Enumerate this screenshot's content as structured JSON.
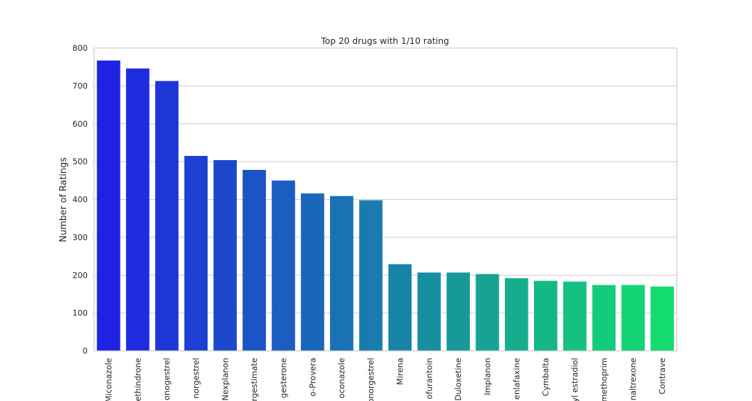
{
  "chart_data": {
    "type": "bar",
    "title": "Top 20 drugs with 1/10 rating",
    "xlabel": "",
    "ylabel": "Number of Ratings",
    "ylim": [
      0,
      800
    ],
    "yticks": [
      0,
      100,
      200,
      300,
      400,
      500,
      600,
      700,
      800
    ],
    "grid": true,
    "legend": false,
    "categories": [
      "Miconazole",
      "ethindrone",
      "onogestrel",
      "norgestrel",
      "Nexplanon",
      "rgestimate",
      "gesterone",
      "o-Provera",
      "oconazole",
      "onorgestrel",
      "Mirena",
      "ofurantoin",
      "Duloxetine",
      "Implanon",
      "enlafaxine",
      "Cymbalta",
      "yl estradiol",
      "methoprim",
      "naltrexone",
      "Contrave"
    ],
    "values": [
      767,
      746,
      713,
      515,
      504,
      478,
      450,
      416,
      409,
      398,
      229,
      207,
      207,
      203,
      192,
      185,
      183,
      174,
      174,
      170
    ],
    "colors": [
      "#1f22e4",
      "#1e2bde",
      "#1e35d8",
      "#1d3fd2",
      "#1c49cc",
      "#1c53c6",
      "#1b5dc0",
      "#1a67ba",
      "#1a71b4",
      "#197bae",
      "#1885a6",
      "#178fa0",
      "#17999a",
      "#16a394",
      "#16ad8e",
      "#15b787",
      "#15c181",
      "#14cb7b",
      "#13d375",
      "#13db6f"
    ]
  }
}
